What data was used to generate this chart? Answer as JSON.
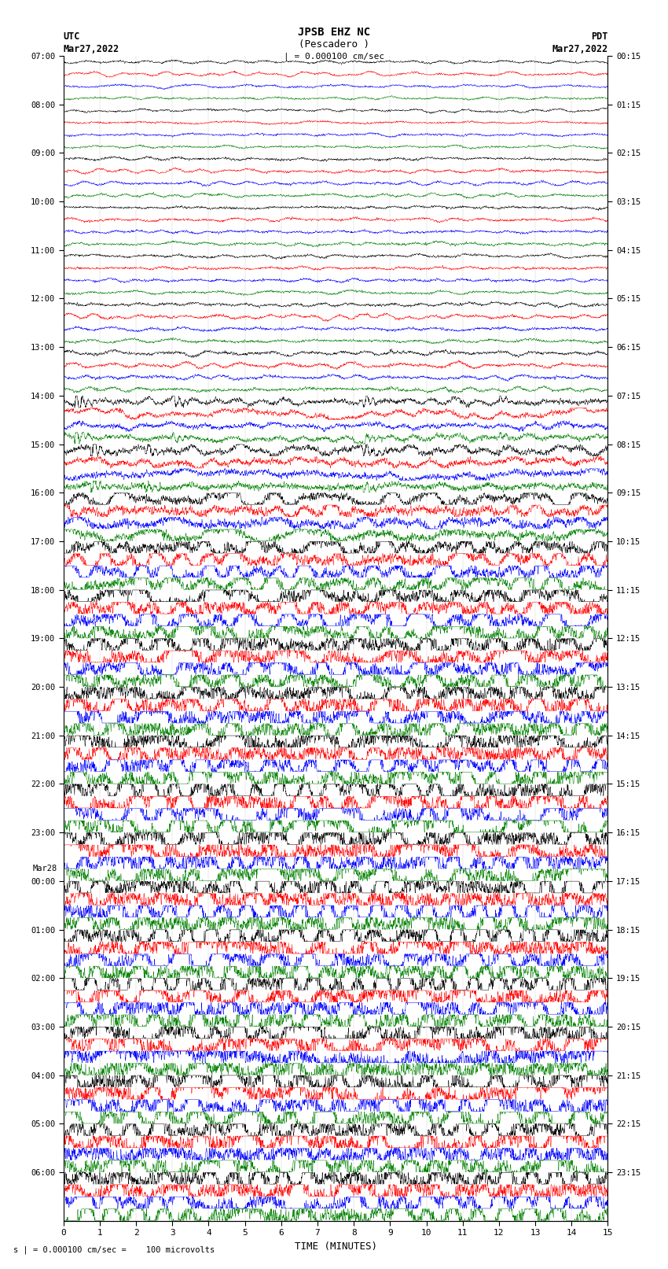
{
  "title_line1": "JPSB EHZ NC",
  "title_line2": "(Pescadero )",
  "scale_label": "| = 0.000100 cm/sec",
  "left_header1": "UTC",
  "left_header2": "Mar27,2022",
  "right_header1": "PDT",
  "right_header2": "Mar27,2022",
  "bottom_label": "TIME (MINUTES)",
  "footnote": "s | = 0.000100 cm/sec =    100 microvolts",
  "xlabel_ticks": [
    0,
    1,
    2,
    3,
    4,
    5,
    6,
    7,
    8,
    9,
    10,
    11,
    12,
    13,
    14,
    15
  ],
  "utc_labels": [
    "07:00",
    "08:00",
    "09:00",
    "10:00",
    "11:00",
    "12:00",
    "13:00",
    "14:00",
    "15:00",
    "16:00",
    "17:00",
    "18:00",
    "19:00",
    "20:00",
    "21:00",
    "22:00",
    "23:00",
    "00:00",
    "01:00",
    "02:00",
    "03:00",
    "04:00",
    "05:00",
    "06:00"
  ],
  "pdt_labels": [
    "00:15",
    "01:15",
    "02:15",
    "03:15",
    "04:15",
    "05:15",
    "06:15",
    "07:15",
    "08:15",
    "09:15",
    "10:15",
    "11:15",
    "12:15",
    "13:15",
    "14:15",
    "15:15",
    "16:15",
    "17:15",
    "18:15",
    "19:15",
    "20:15",
    "21:15",
    "22:15",
    "23:15"
  ],
  "colors": [
    "black",
    "red",
    "blue",
    "green"
  ],
  "n_rows": 24,
  "traces_per_row": 4,
  "background_color": "white",
  "line_width": 0.35,
  "noise_levels": [
    0.06,
    0.06,
    0.07,
    0.07,
    0.07,
    0.08,
    0.09,
    0.15,
    0.2,
    0.28,
    0.38,
    0.45,
    0.5,
    0.55,
    0.55,
    0.58,
    0.58,
    0.6,
    0.6,
    0.6,
    0.6,
    0.6,
    0.6,
    0.6
  ]
}
